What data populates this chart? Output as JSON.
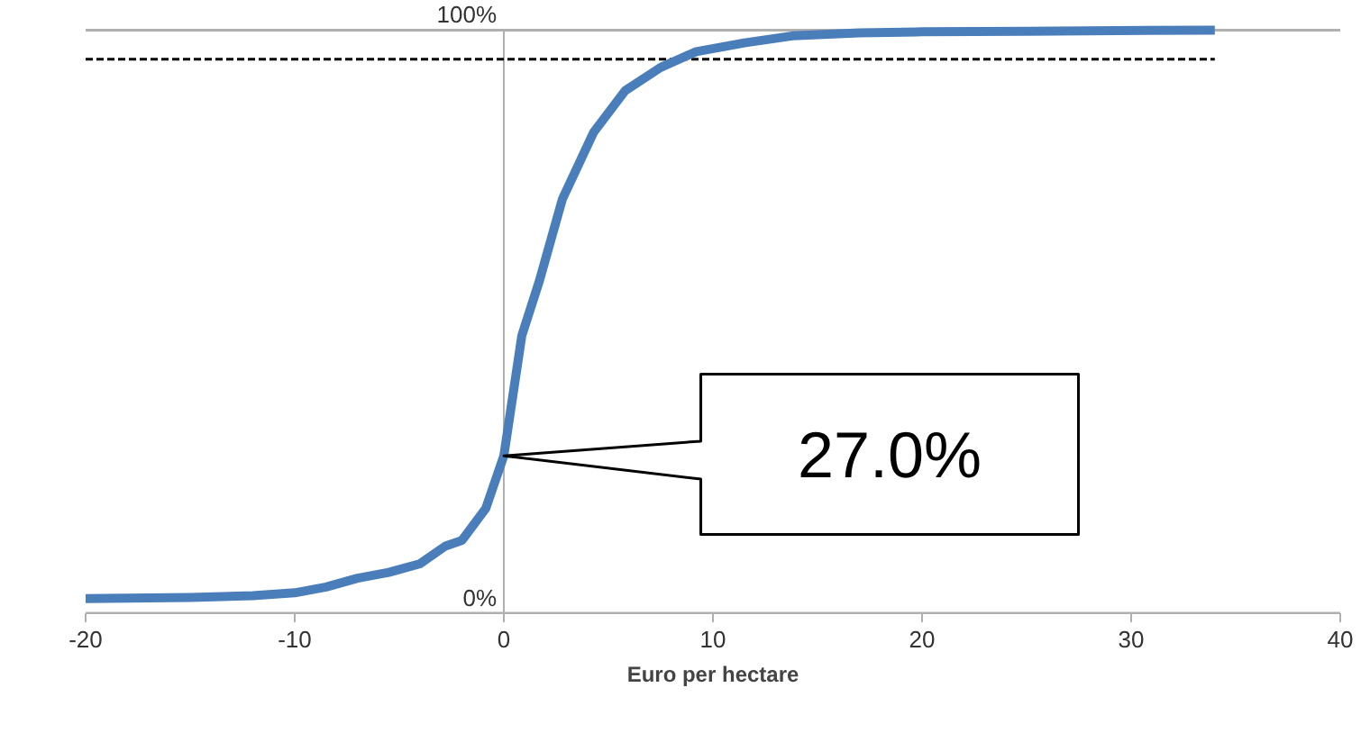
{
  "chart_data": {
    "type": "line",
    "xlabel": "Euro per hectare",
    "x": [
      -20,
      -15,
      -12,
      -10,
      -8.5,
      -7,
      -5.5,
      -4,
      -2.8,
      -2,
      -0.86,
      0,
      0.86,
      1.7,
      2.8,
      4.3,
      5.8,
      7.5,
      9.2,
      11.5,
      13.8,
      17,
      20,
      25,
      34
    ],
    "series": [
      {
        "color": "#4a7ebb",
        "values": [
          2.5,
          2.7,
          3,
          3.5,
          4.5,
          6,
          7,
          8.5,
          11.5,
          12.5,
          18,
          27,
          47.6,
          57,
          71,
          82.5,
          89.6,
          93.6,
          96.3,
          97.8,
          99,
          99.5,
          99.7,
          99.8,
          100
        ]
      }
    ],
    "xlim": [
      -20,
      40
    ],
    "xticks": [
      -20,
      -10,
      0,
      10,
      20,
      30,
      40
    ],
    "ylim": [
      0,
      100
    ],
    "yticks": [
      {
        "value": 0,
        "label": "0%"
      },
      {
        "value": 100,
        "label": "100%"
      }
    ],
    "grid": "y",
    "marker": "none",
    "line_style": "solid",
    "ref_lines": [
      {
        "axis": "y",
        "value": 95,
        "label": null,
        "line_style": "dashed",
        "color": "#000000"
      }
    ],
    "annotations": [
      "27.0%"
    ]
  }
}
